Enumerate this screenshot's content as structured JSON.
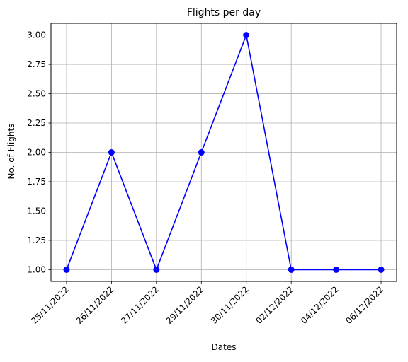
{
  "chart_data": {
    "type": "line",
    "title": "Flights per day",
    "xlabel": "Dates",
    "ylabel": "No. of Flights",
    "categories": [
      "25/11/2022",
      "26/11/2022",
      "27/11/2022",
      "29/11/2022",
      "30/11/2022",
      "02/12/2022",
      "04/12/2022",
      "06/12/2022"
    ],
    "series": [
      {
        "values": [
          1,
          2,
          1,
          2,
          3,
          1,
          1,
          1
        ],
        "color": "#0000ff",
        "marker": "circle"
      }
    ],
    "ylim": [
      0.9,
      3.1
    ],
    "yticks": [
      "1.00",
      "1.25",
      "1.50",
      "1.75",
      "2.00",
      "2.25",
      "2.50",
      "2.75",
      "3.00"
    ],
    "grid": true,
    "legend": false
  },
  "colors": {
    "grid": "#b0b0b0",
    "axes": "#000000",
    "line": "#0000ff"
  }
}
